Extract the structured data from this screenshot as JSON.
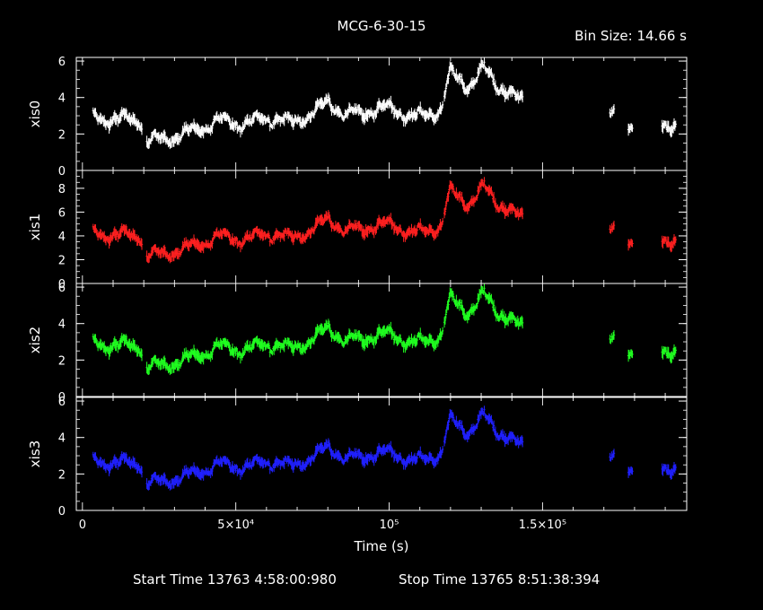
{
  "title": "MCG-6-30-15",
  "bin_size": "Bin Size: 14.66 s",
  "footer": {
    "start": "Start Time 13763  4:58:00:980",
    "stop": "Stop Time 13765  8:51:38:394"
  },
  "chart_data": {
    "type": "scatter",
    "xlabel": "Time (s)",
    "x_ticks": [
      "0",
      "5×10⁴",
      "10⁵",
      "1.5×10⁵"
    ],
    "x_tick_values": [
      0,
      50000,
      100000,
      150000
    ],
    "xlim": [
      -2000,
      197000
    ],
    "panels": [
      {
        "name": "xis0",
        "color": "#ffffff",
        "ylim": [
          0,
          6.2
        ],
        "yticks": [
          "0",
          "2",
          "4",
          "6"
        ],
        "ytick_values": [
          0,
          2,
          4,
          6
        ]
      },
      {
        "name": "xis1",
        "color": "#ff2020",
        "ylim": [
          0,
          9.5
        ],
        "yticks": [
          "0",
          "2",
          "4",
          "6",
          "8"
        ],
        "ytick_values": [
          0,
          2,
          4,
          6,
          8
        ]
      },
      {
        "name": "xis2",
        "color": "#20ff20",
        "ylim": [
          0,
          6.2
        ],
        "yticks": [
          "0",
          "2",
          "4",
          "6"
        ],
        "ytick_values": [
          0,
          2,
          4,
          6
        ]
      },
      {
        "name": "xis3",
        "color": "#2020ff",
        "ylim": [
          0,
          6.2
        ],
        "yticks": [
          "0",
          "2",
          "4",
          "6"
        ],
        "ytick_values": [
          0,
          2,
          4,
          6
        ]
      }
    ],
    "segments": [
      [
        3500,
        19500
      ],
      [
        21000,
        44500
      ],
      [
        44500,
        68500
      ],
      [
        68500,
        93000
      ],
      [
        93000,
        117500
      ],
      [
        118000,
        143500
      ],
      [
        172000,
        173500
      ],
      [
        178000,
        179500
      ],
      [
        189000,
        193500
      ]
    ],
    "xis0_profile": [
      [
        3500,
        2.9
      ],
      [
        9000,
        2.8
      ],
      [
        19000,
        2.8
      ],
      [
        21000,
        1.6
      ],
      [
        30000,
        1.8
      ],
      [
        40000,
        2.4
      ],
      [
        46000,
        2.8
      ],
      [
        52000,
        2.5
      ],
      [
        60000,
        2.9
      ],
      [
        68000,
        2.6
      ],
      [
        76000,
        3.2
      ],
      [
        80000,
        3.8
      ],
      [
        86000,
        3.0
      ],
      [
        95000,
        3.3
      ],
      [
        100000,
        3.5
      ],
      [
        108000,
        2.9
      ],
      [
        117000,
        3.3
      ],
      [
        120000,
        5.4
      ],
      [
        126000,
        4.6
      ],
      [
        131000,
        5.6
      ],
      [
        136000,
        4.6
      ],
      [
        143000,
        3.8
      ],
      [
        172000,
        3.0
      ],
      [
        179000,
        2.6
      ],
      [
        190000,
        2.6
      ],
      [
        193500,
        2.2
      ]
    ],
    "xis1_scale": 1.45,
    "xis2_scale": 1.0,
    "xis3_scale": 0.93
  }
}
